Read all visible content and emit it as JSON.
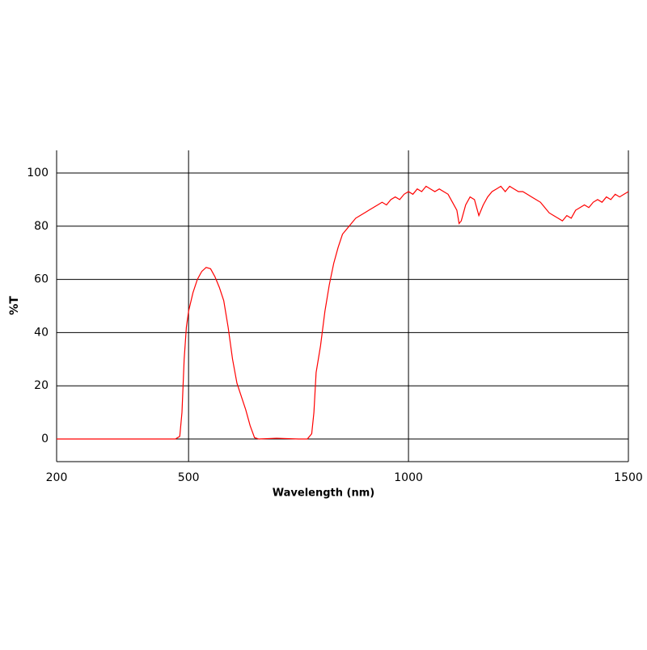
{
  "chart_data": {
    "type": "line",
    "x_label": "Wavelength (nm)",
    "y_label": "%T",
    "xlim": [
      200,
      1500
    ],
    "xticks": [
      200,
      500,
      1000,
      1500
    ],
    "ylim": [
      -8.5,
      108.5
    ],
    "yticks": [
      0,
      20,
      40,
      60,
      80,
      100
    ],
    "grid": true,
    "x": [
      200,
      300,
      400,
      470,
      480,
      485,
      490,
      495,
      500,
      510,
      520,
      530,
      540,
      550,
      560,
      570,
      580,
      590,
      600,
      610,
      620,
      630,
      640,
      650,
      660,
      700,
      750,
      770,
      780,
      785,
      790,
      800,
      810,
      820,
      830,
      840,
      850,
      860,
      870,
      880,
      890,
      900,
      910,
      920,
      930,
      940,
      950,
      960,
      970,
      980,
      990,
      1000,
      1010,
      1020,
      1030,
      1040,
      1050,
      1060,
      1070,
      1080,
      1090,
      1100,
      1110,
      1115,
      1120,
      1130,
      1140,
      1150,
      1160,
      1170,
      1180,
      1190,
      1200,
      1210,
      1220,
      1230,
      1240,
      1250,
      1260,
      1270,
      1280,
      1290,
      1300,
      1310,
      1320,
      1330,
      1340,
      1350,
      1360,
      1370,
      1380,
      1390,
      1400,
      1410,
      1420,
      1430,
      1440,
      1450,
      1460,
      1470,
      1480,
      1490,
      1500
    ],
    "series": [
      {
        "color": "#ff0000",
        "values": [
          0,
          0,
          0,
          0,
          1,
          10,
          30,
          42,
          48,
          55,
          60,
          63,
          64.5,
          64,
          61,
          57,
          52,
          42,
          30,
          21,
          16,
          11,
          5,
          0.5,
          0,
          0.3,
          0,
          0,
          2,
          10,
          25,
          35,
          48,
          58,
          66,
          72,
          77,
          79,
          81,
          83,
          84,
          85,
          86,
          87,
          88,
          89,
          88,
          90,
          91,
          90,
          92,
          93,
          92,
          94,
          93,
          95,
          94,
          93,
          94,
          93,
          92,
          89,
          86,
          81,
          82,
          88,
          91,
          90,
          84,
          88,
          91,
          93,
          94,
          95,
          93,
          95,
          94,
          93,
          93,
          92,
          91,
          90,
          89,
          87,
          85,
          84,
          83,
          82,
          84,
          83,
          86,
          87,
          88,
          87,
          89,
          90,
          89,
          91,
          90,
          92,
          91,
          92,
          93
        ]
      }
    ]
  }
}
